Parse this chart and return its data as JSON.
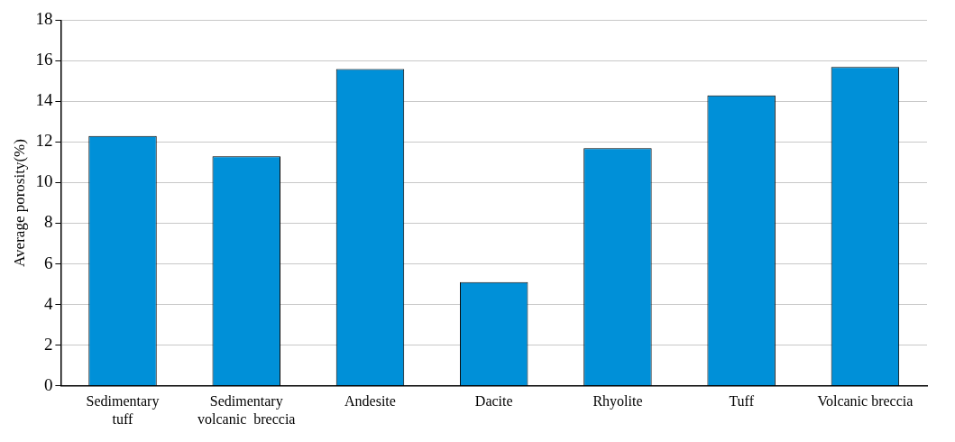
{
  "chart_data": {
    "type": "bar",
    "ylabel": "Average porosity(%)",
    "categories": [
      "Sedimentary\ntuff",
      "Sedimentary\nvolcanic  breccia",
      "Andesite",
      "Dacite",
      "Rhyolite",
      "Tuff",
      "Volcanic breccia"
    ],
    "values": [
      12.3,
      11.3,
      15.6,
      5.1,
      11.7,
      14.3,
      15.7
    ],
    "color": "#0090d8",
    "ylim": [
      0,
      18
    ],
    "yticks": [
      0,
      2,
      4,
      6,
      8,
      10,
      12,
      14,
      16,
      18
    ],
    "grid": "y"
  }
}
